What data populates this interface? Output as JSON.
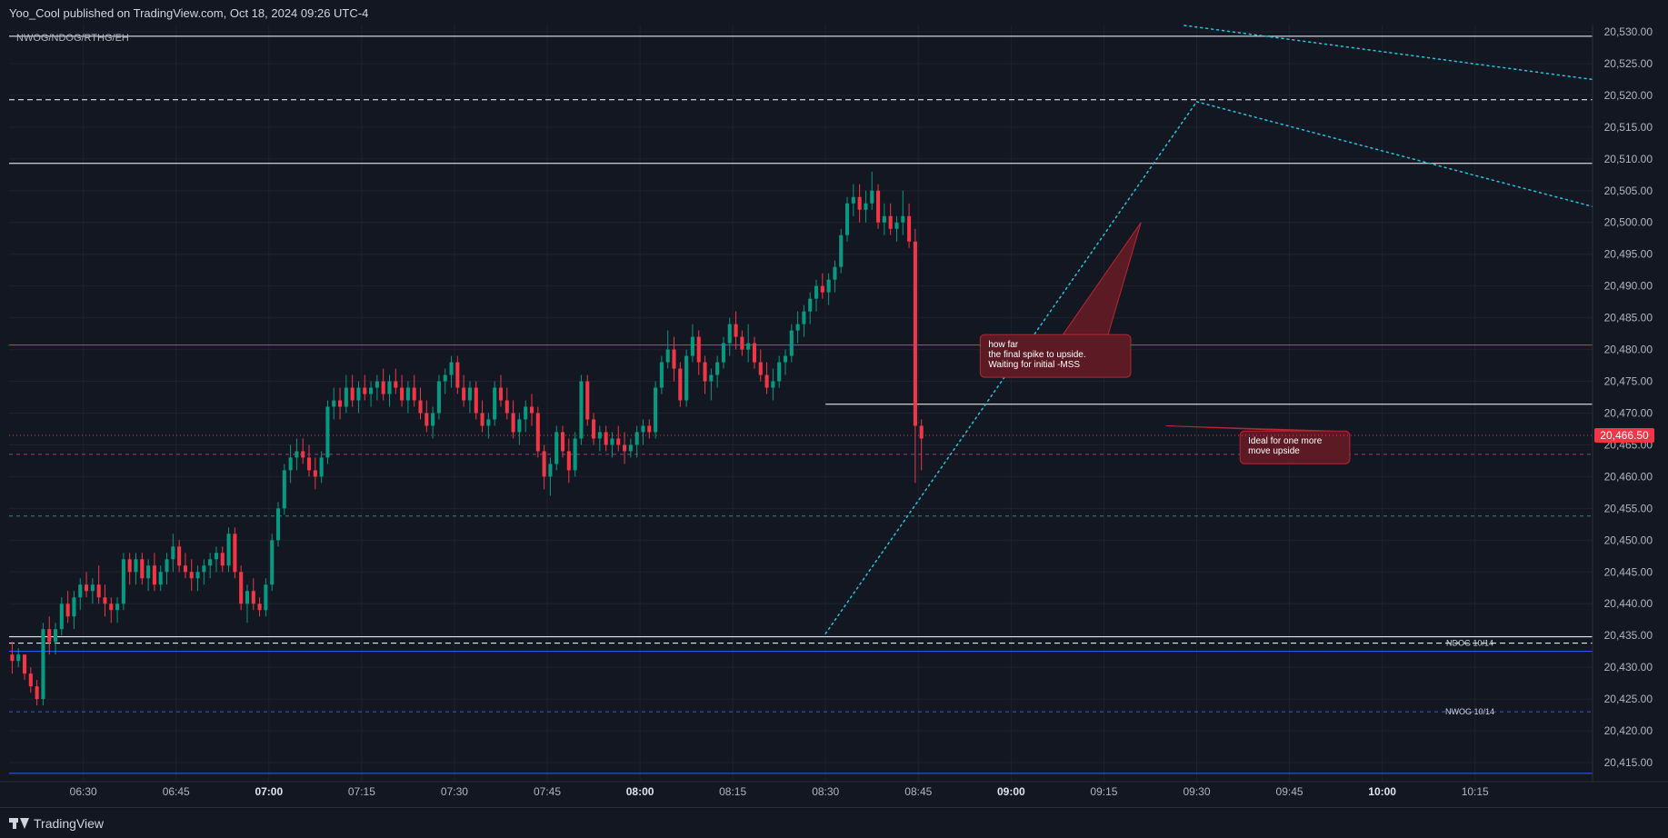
{
  "header": {
    "published": "Yoo_Cool published on TradingView.com, Oct 18, 2024 09:26 UTC-4"
  },
  "footer": {
    "brand": "TradingView"
  },
  "colors": {
    "bg": "#131722",
    "up": "#089981",
    "down": "#f23645",
    "grid": "#1e222d",
    "projection": "#22c5d9"
  },
  "chart_data": {
    "type": "candlestick",
    "title": "",
    "indicator_label": "NWOG/NDOG/RTHG/EH",
    "ylim": [
      20412,
      20531
    ],
    "xlim": [
      "06:18",
      "10:34"
    ],
    "y_ticks": [
      "20,415.00",
      "20,420.00",
      "20,425.00",
      "20,430.00",
      "20,435.00",
      "20,440.00",
      "20,445.00",
      "20,450.00",
      "20,455.00",
      "20,460.00",
      "20,465.00",
      "20,470.00",
      "20,475.00",
      "20,480.00",
      "20,485.00",
      "20,490.00",
      "20,495.00",
      "20,500.00",
      "20,505.00",
      "20,510.00",
      "20,515.00",
      "20,520.00",
      "20,525.00",
      "20,530.00"
    ],
    "y_tick_values": [
      20415,
      20420,
      20425,
      20430,
      20435,
      20440,
      20445,
      20450,
      20455,
      20460,
      20465,
      20470,
      20475,
      20480,
      20485,
      20490,
      20495,
      20500,
      20505,
      20510,
      20515,
      20520,
      20525,
      20530
    ],
    "x_ticks": [
      {
        "label": "06:30",
        "time": "06:30",
        "bold": false
      },
      {
        "label": "06:45",
        "time": "06:45",
        "bold": false
      },
      {
        "label": "07:00",
        "time": "07:00",
        "bold": true
      },
      {
        "label": "07:15",
        "time": "07:15",
        "bold": false
      },
      {
        "label": "07:30",
        "time": "07:30",
        "bold": false
      },
      {
        "label": "07:45",
        "time": "07:45",
        "bold": false
      },
      {
        "label": "08:00",
        "time": "08:00",
        "bold": true
      },
      {
        "label": "08:15",
        "time": "08:15",
        "bold": false
      },
      {
        "label": "08:30",
        "time": "08:30",
        "bold": false
      },
      {
        "label": "08:45",
        "time": "08:45",
        "bold": false
      },
      {
        "label": "09:00",
        "time": "09:00",
        "bold": true
      },
      {
        "label": "09:15",
        "time": "09:15",
        "bold": false
      },
      {
        "label": "09:30",
        "time": "09:30",
        "bold": false
      },
      {
        "label": "09:45",
        "time": "09:45",
        "bold": false
      },
      {
        "label": "10:00",
        "time": "10:00",
        "bold": true
      },
      {
        "label": "10:15",
        "time": "10:15",
        "bold": false
      }
    ],
    "last_price": "20,466.50",
    "last_price_value": 20466.5,
    "levels": [
      {
        "price": 20529.3,
        "color": "#ffffff",
        "style": "solid"
      },
      {
        "price": 20519.3,
        "color": "#ffffff",
        "style": "dashed"
      },
      {
        "price": 20509.3,
        "color": "#ffffff",
        "style": "solid"
      },
      {
        "price": 20480.7,
        "color": "#f23645",
        "style": "solid"
      },
      {
        "price": 20463.5,
        "color": "#9c3f7f",
        "style": "dashed"
      },
      {
        "price": 20453.8,
        "color": "#089981",
        "style": "dashed"
      },
      {
        "price": 20434.8,
        "color": "#ffffff",
        "style": "solid"
      },
      {
        "price": 20433.8,
        "color": "#ffffff",
        "style": "dashed"
      },
      {
        "price": 20432.5,
        "color": "#2962ff",
        "style": "solid"
      },
      {
        "price": 20423.0,
        "color": "#2962ff",
        "style": "dashed"
      },
      {
        "price": 20413.3,
        "color": "#2962ff",
        "style": "solid"
      }
    ],
    "level_labels": [
      {
        "text": "NDOG 10/14",
        "price": 20433.8
      },
      {
        "text": "NWOG 10/14",
        "price": 20423.0
      }
    ],
    "ranges": [
      {
        "price": 20471.4,
        "start": "08:30",
        "end": "10:34"
      }
    ],
    "projections": [
      {
        "from": {
          "time": "08:30",
          "price": 20435.3
        },
        "to": {
          "time": "09:30",
          "price": 20519.0
        }
      },
      {
        "from": {
          "time": "09:30",
          "price": 20519.0
        },
        "to": {
          "time": "10:34",
          "price": 20502.5
        }
      },
      {
        "from": {
          "time": "09:28",
          "price": 20531.0
        },
        "to": {
          "time": "10:34",
          "price": 20522.5
        }
      }
    ],
    "annotations": [
      {
        "lines": [
          "how far",
          "the final spike to upside.",
          "Waiting for initial -MSS"
        ],
        "anchor_time": "08:55",
        "anchor_price": 20479,
        "pointer": {
          "time": "09:21",
          "price": 20500
        }
      },
      {
        "lines": [
          "Ideal for one more",
          "move upside"
        ],
        "anchor_time": "09:37",
        "anchor_price": 20464.6,
        "pointer": {
          "time": "09:25",
          "price": 20468
        }
      }
    ],
    "candles_1m": [
      [
        20432,
        20434,
        20429,
        20431
      ],
      [
        20431,
        20433,
        20430,
        20432
      ],
      [
        20432,
        20432,
        20428,
        20429
      ],
      [
        20429,
        20430,
        20426,
        20427
      ],
      [
        20427,
        20428,
        20424,
        20425
      ],
      [
        20425,
        20437,
        20424,
        20436
      ],
      [
        20436,
        20438,
        20432,
        20434
      ],
      [
        20434,
        20437,
        20432,
        20436
      ],
      [
        20436,
        20441,
        20435,
        20440
      ],
      [
        20440,
        20442,
        20437,
        20438
      ],
      [
        20438,
        20442,
        20436,
        20441
      ],
      [
        20441,
        20444,
        20439,
        20443
      ],
      [
        20443,
        20445,
        20441,
        20442
      ],
      [
        20442,
        20444,
        20440,
        20443
      ],
      [
        20443,
        20446,
        20440,
        20441
      ],
      [
        20441,
        20443,
        20438,
        20440
      ],
      [
        20440,
        20441,
        20437,
        20439
      ],
      [
        20439,
        20441,
        20437,
        20440
      ],
      [
        20440,
        20448,
        20439,
        20447
      ],
      [
        20447,
        20448,
        20443,
        20445
      ],
      [
        20445,
        20448,
        20443,
        20447
      ],
      [
        20447,
        20448,
        20443,
        20444
      ],
      [
        20444,
        20447,
        20442,
        20446
      ],
      [
        20446,
        20448,
        20442,
        20443
      ],
      [
        20443,
        20446,
        20442,
        20445
      ],
      [
        20445,
        20448,
        20443,
        20447
      ],
      [
        20447,
        20451,
        20445,
        20449
      ],
      [
        20449,
        20450,
        20445,
        20446
      ],
      [
        20446,
        20448,
        20444,
        20445
      ],
      [
        20445,
        20447,
        20442,
        20444
      ],
      [
        20444,
        20446,
        20442,
        20445
      ],
      [
        20445,
        20447,
        20443,
        20446
      ],
      [
        20446,
        20448,
        20444,
        20447
      ],
      [
        20447,
        20449,
        20445,
        20448
      ],
      [
        20448,
        20449,
        20445,
        20446
      ],
      [
        20446,
        20452,
        20445,
        20451
      ],
      [
        20451,
        20452,
        20444,
        20445
      ],
      [
        20445,
        20446,
        20439,
        20440
      ],
      [
        20440,
        20443,
        20437,
        20442
      ],
      [
        20442,
        20444,
        20439,
        20440
      ],
      [
        20440,
        20441,
        20438,
        20439
      ],
      [
        20439,
        20444,
        20438,
        20443
      ],
      [
        20443,
        20451,
        20442,
        20450
      ],
      [
        20450,
        20456,
        20449,
        20455
      ],
      [
        20455,
        20462,
        20454,
        20461
      ],
      [
        20461,
        20465,
        20459,
        20463
      ],
      [
        20463,
        20466,
        20461,
        20464
      ],
      [
        20464,
        20466,
        20462,
        20463
      ],
      [
        20463,
        20465,
        20460,
        20461
      ],
      [
        20461,
        20463,
        20458,
        20460
      ],
      [
        20460,
        20464,
        20459,
        20463
      ],
      [
        20463,
        20472,
        20462,
        20471
      ],
      [
        20471,
        20474,
        20469,
        20472
      ],
      [
        20472,
        20474,
        20469,
        20471
      ],
      [
        20471,
        20476,
        20470,
        20474
      ],
      [
        20474,
        20476,
        20471,
        20472
      ],
      [
        20472,
        20475,
        20470,
        20474
      ],
      [
        20474,
        20476,
        20472,
        20473
      ],
      [
        20473,
        20475,
        20471,
        20474
      ],
      [
        20474,
        20476,
        20472,
        20475
      ],
      [
        20475,
        20477,
        20472,
        20473
      ],
      [
        20473,
        20476,
        20471,
        20475
      ],
      [
        20475,
        20477,
        20473,
        20474
      ],
      [
        20474,
        20476,
        20471,
        20472
      ],
      [
        20472,
        20475,
        20470,
        20474
      ],
      [
        20474,
        20476,
        20471,
        20472
      ],
      [
        20472,
        20474,
        20469,
        20470
      ],
      [
        20470,
        20472,
        20467,
        20468
      ],
      [
        20468,
        20471,
        20466,
        20470
      ],
      [
        20470,
        20476,
        20469,
        20475
      ],
      [
        20475,
        20477,
        20473,
        20476
      ],
      [
        20476,
        20479,
        20474,
        20478
      ],
      [
        20478,
        20479,
        20473,
        20474
      ],
      [
        20474,
        20476,
        20471,
        20472
      ],
      [
        20472,
        20475,
        20470,
        20474
      ],
      [
        20474,
        20475,
        20469,
        20470
      ],
      [
        20470,
        20472,
        20467,
        20468
      ],
      [
        20468,
        20470,
        20466,
        20469
      ],
      [
        20469,
        20475,
        20468,
        20474
      ],
      [
        20474,
        20476,
        20471,
        20472
      ],
      [
        20472,
        20474,
        20469,
        20470
      ],
      [
        20470,
        20472,
        20466,
        20467
      ],
      [
        20467,
        20470,
        20465,
        20469
      ],
      [
        20469,
        20472,
        20467,
        20471
      ],
      [
        20471,
        20473,
        20468,
        20470
      ],
      [
        20470,
        20471,
        20463,
        20464
      ],
      [
        20464,
        20465,
        20458,
        20460
      ],
      [
        20460,
        20463,
        20457,
        20462
      ],
      [
        20462,
        20468,
        20461,
        20467
      ],
      [
        20467,
        20468,
        20463,
        20464
      ],
      [
        20464,
        20466,
        20459,
        20461
      ],
      [
        20461,
        20467,
        20460,
        20466
      ],
      [
        20466,
        20476,
        20465,
        20475
      ],
      [
        20475,
        20476,
        20468,
        20469
      ],
      [
        20469,
        20470,
        20465,
        20466
      ],
      [
        20466,
        20468,
        20464,
        20467
      ],
      [
        20467,
        20468,
        20464,
        20465
      ],
      [
        20465,
        20467,
        20463,
        20466
      ],
      [
        20466,
        20468,
        20464,
        20465
      ],
      [
        20465,
        20467,
        20462,
        20464
      ],
      [
        20464,
        20466,
        20463,
        20465
      ],
      [
        20465,
        20468,
        20463,
        20467
      ],
      [
        20467,
        20469,
        20465,
        20468
      ],
      [
        20468,
        20469,
        20466,
        20467
      ],
      [
        20467,
        20475,
        20466,
        20474
      ],
      [
        20474,
        20479,
        20473,
        20478
      ],
      [
        20478,
        20483,
        20477,
        20480
      ],
      [
        20480,
        20482,
        20475,
        20477
      ],
      [
        20477,
        20478,
        20471,
        20472
      ],
      [
        20472,
        20480,
        20471,
        20479
      ],
      [
        20479,
        20484,
        20478,
        20482
      ],
      [
        20482,
        20483,
        20476,
        20478
      ],
      [
        20478,
        20479,
        20473,
        20475
      ],
      [
        20475,
        20477,
        20472,
        20476
      ],
      [
        20476,
        20479,
        20474,
        20478
      ],
      [
        20478,
        20482,
        20477,
        20481
      ],
      [
        20481,
        20485,
        20479,
        20484
      ],
      [
        20484,
        20486,
        20480,
        20482
      ],
      [
        20482,
        20483,
        20479,
        20480
      ],
      [
        20480,
        20484,
        20478,
        20481
      ],
      [
        20481,
        20482,
        20477,
        20478
      ],
      [
        20478,
        20480,
        20475,
        20476
      ],
      [
        20476,
        20478,
        20473,
        20474
      ],
      [
        20474,
        20477,
        20472,
        20475
      ],
      [
        20475,
        20479,
        20474,
        20478
      ],
      [
        20478,
        20480,
        20476,
        20479
      ],
      [
        20479,
        20484,
        20478,
        20483
      ],
      [
        20483,
        20486,
        20481,
        20484
      ],
      [
        20484,
        20487,
        20482,
        20486
      ],
      [
        20486,
        20489,
        20484,
        20488
      ],
      [
        20488,
        20491,
        20486,
        20490
      ],
      [
        20490,
        20492,
        20488,
        20489
      ],
      [
        20489,
        20492,
        20487,
        20491
      ],
      [
        20491,
        20494,
        20489,
        20493
      ],
      [
        20493,
        20499,
        20492,
        20498
      ],
      [
        20498,
        20504,
        20497,
        20503
      ],
      [
        20503,
        20506,
        20501,
        20504
      ],
      [
        20504,
        20506,
        20500,
        20502
      ],
      [
        20502,
        20505,
        20500,
        20503
      ],
      [
        20503,
        20508,
        20502,
        20505
      ],
      [
        20505,
        20506,
        20499,
        20500
      ],
      [
        20500,
        20503,
        20498,
        20501
      ],
      [
        20501,
        20503,
        20498,
        20499
      ],
      [
        20499,
        20501,
        20497,
        20500
      ],
      [
        20500,
        20505,
        20498,
        20501
      ],
      [
        20501,
        20503,
        20496,
        20497
      ],
      [
        20497,
        20499,
        20459,
        20468
      ],
      [
        20468,
        20469,
        20461,
        20466
      ]
    ]
  }
}
